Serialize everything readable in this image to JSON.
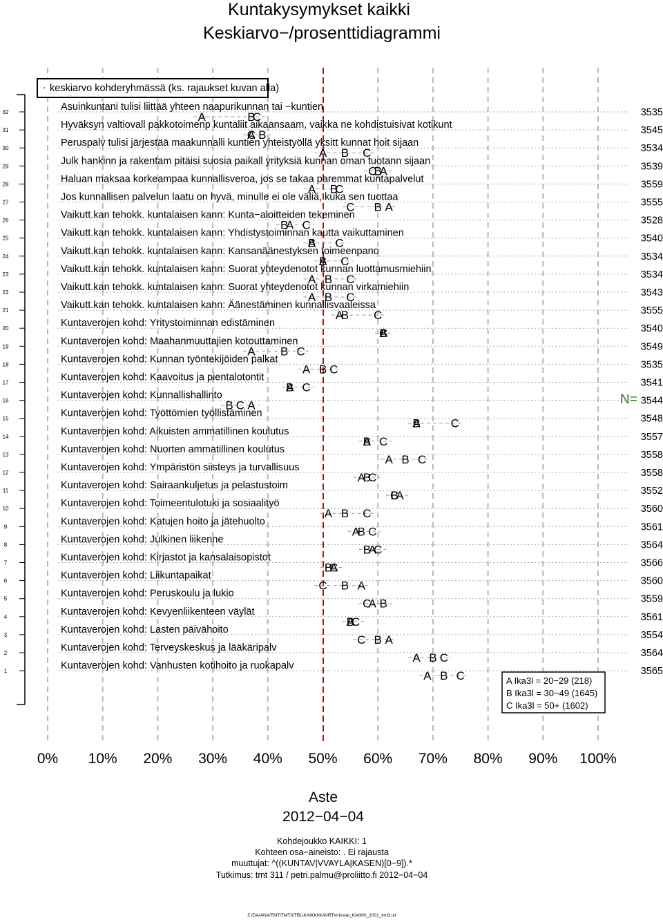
{
  "title": [
    "Kuntakysymykset kaikki",
    "Keskiarvo−/prosenttidiagrammi"
  ],
  "legend_top": "keskiarvo kohderyhmässä (ks. rajaukset kuvan alla)",
  "n_label": "N=",
  "group_legend": [
    "A  Ika3l = 20−29 (218)",
    "B  Ika3l = 30−49 (1645)",
    "C  Ika3l = 50+ (1602)"
  ],
  "footer": {
    "xlabel": "Aste",
    "date": "2012−04−04",
    "line1": "Kohdejoukko KAIKKI: 1",
    "line2": "Kohteen osa−aineisto: . Ei rajausta",
    "line3": "muuttujat: ^((KUNTAV|VVAYLA|KASEN)[0−9]).*",
    "line4": "Tutkimus: tmt 311 / petri.palmu@proliitto.fi 2012−04−04",
    "path": "Z:/DA/ANA/TMT/TMT3/TBL\\KAIKKI\\KAVRT\\minstat_KAIKKI_1001_tmt3.txt"
  },
  "chart_data": {
    "type": "scatter",
    "title": "Kuntakysymykset kaikki",
    "xlabel": "Aste",
    "x_ticks": [
      "0%",
      "10%",
      "20%",
      "30%",
      "40%",
      "50%",
      "60%",
      "70%",
      "80%",
      "90%",
      "100%"
    ],
    "xlim": [
      0,
      100
    ],
    "reference_line": 50,
    "groups": [
      "A",
      "B",
      "C"
    ],
    "rows": [
      {
        "n": 32,
        "label": "Asuinkuntani tulisi liittää yhteen naapurikunnan tai −kuntien",
        "N": "3535",
        "A": 28,
        "B": 37,
        "C": 38
      },
      {
        "n": 31,
        "label": "Hyväksyn valtiovall pakkotoimenp kuntaliit aikaansaam, vaikka ne kohdistuisivat kotikunt",
        "N": "3545",
        "A": 37,
        "B": 39,
        "C": 37
      },
      {
        "n": 30,
        "label": "Peruspalv tulisi järjestää maakunnalli kuntien yhteistyöllä yksitt kunnat hoit sijaan",
        "N": "3534",
        "A": 50,
        "B": 54,
        "C": 58
      },
      {
        "n": 29,
        "label": "Julk hankinn ja rakentam pitäisi suosia paikall yrityksiä kunnan oman tuotann sijaan",
        "N": "3539",
        "A": 61,
        "B": 60,
        "C": 59
      },
      {
        "n": 28,
        "label": "Haluan maksaa korkeampaa kunnallisveroa, jos se takaa paremmat kuntapalvelut",
        "N": "3559",
        "A": 48,
        "B": 52,
        "C": 53
      },
      {
        "n": 27,
        "label": "Jos kunnallisen palvelun laatu on hyvä, minulle ei ole väliä, kuka sen tuottaa",
        "N": "3555",
        "A": 62,
        "B": 60,
        "C": 55
      },
      {
        "n": 26,
        "label": "Vaikutt.kan tehokk. kuntalaisen kann: Kunta−aloitteiden tekeminen",
        "N": "3528",
        "A": 44,
        "B": 43,
        "C": 47
      },
      {
        "n": 25,
        "label": "Vaikutt.kan tehokk. kuntalaisen kann: Yhdistystoiminnan kautta vaikuttaminen",
        "N": "3540",
        "A": 48,
        "B": 48,
        "C": 53
      },
      {
        "n": 24,
        "label": "Vaikutt.kan tehokk. kuntalaisen kann: Kansanäänestyksen toimeenpano",
        "N": "3534",
        "A": 50,
        "B": 50,
        "C": 54
      },
      {
        "n": 23,
        "label": "Vaikutt.kan tehokk. kuntalaisen kann: Suorat yhteydenotot kunnan luottamusmiehiin",
        "N": "3534",
        "A": 48,
        "B": 51,
        "C": 55
      },
      {
        "n": 22,
        "label": "Vaikutt.kan tehokk. kuntalaisen kann: Suorat yhteydenotot kunnan virkamiehiin",
        "N": "3543",
        "A": 48,
        "B": 51,
        "C": 55
      },
      {
        "n": 21,
        "label": "Vaikutt.kan tehokk. kuntalaisen kann: Äänestäminen kunnallisvaaleissa",
        "N": "3555",
        "A": 53,
        "B": 54,
        "C": 60
      },
      {
        "n": 20,
        "label": "Kuntaverojen kohd: Yritystoiminnan edistäminen",
        "N": "3540",
        "A": 61,
        "B": 61,
        "C": 61
      },
      {
        "n": 19,
        "label": "Kuntaverojen kohd: Maahanmuuttajien kotouttaminen",
        "N": "3549",
        "A": 37,
        "B": 43,
        "C": 46
      },
      {
        "n": 18,
        "label": "Kuntaverojen kohd: Kunnan työntekijöiden palkat",
        "N": "3535",
        "A": 47,
        "B": 50,
        "C": 52
      },
      {
        "n": 17,
        "label": "Kuntaverojen kohd: Kaavoitus ja pientalotontit",
        "N": "3541",
        "A": 44,
        "B": 44,
        "C": 47
      },
      {
        "n": 16,
        "label": "Kuntaverojen kohd: Kunnallishallinto",
        "N": "3544",
        "A": 37,
        "B": 33,
        "C": 35
      },
      {
        "n": 15,
        "label": "Kuntaverojen kohd: Työttömien työllistäminen",
        "N": "3548",
        "A": 67,
        "B": 67,
        "C": 74
      },
      {
        "n": 14,
        "label": "Kuntaverojen kohd: Aikuisten ammatillinen koulutus",
        "N": "3557",
        "A": 58,
        "B": 58,
        "C": 61
      },
      {
        "n": 13,
        "label": "Kuntaverojen kohd: Nuorten ammatillinen koulutus",
        "N": "3558",
        "A": 62,
        "B": 65,
        "C": 68
      },
      {
        "n": 12,
        "label": "Kuntaverojen kohd: Ympäristön siisteys ja turvallisuus",
        "N": "3558",
        "A": 57,
        "B": 58,
        "C": 59
      },
      {
        "n": 11,
        "label": "Kuntaverojen kohd: Sairaankuljetus ja pelastustoim",
        "N": "3552",
        "A": 64,
        "B": 63,
        "C": 63
      },
      {
        "n": 10,
        "label": "Kuntaverojen kohd: Toimeentulotuki ja sosiaalityö",
        "N": "3560",
        "A": 51,
        "B": 54,
        "C": 58
      },
      {
        "n": 9,
        "label": "Kuntaverojen kohd: Katujen hoito ja jätehuolto",
        "N": "3561",
        "A": 56,
        "B": 57,
        "C": 59
      },
      {
        "n": 8,
        "label": "Kuntaverojen kohd: Julkinen liikenne",
        "N": "3564",
        "A": 59,
        "B": 58,
        "C": 60
      },
      {
        "n": 7,
        "label": "Kuntaverojen kohd: Kirjastot ja kansalaisopistot",
        "N": "3566",
        "A": 52,
        "B": 51,
        "C": 52
      },
      {
        "n": 6,
        "label": "Kuntaverojen kohd: Liikuntapaikat",
        "N": "3560",
        "A": 57,
        "B": 54,
        "C": 50
      },
      {
        "n": 5,
        "label": "Kuntaverojen kohd: Peruskoulu ja lukio",
        "N": "3559",
        "A": 59,
        "B": 61,
        "C": 58
      },
      {
        "n": 4,
        "label": "Kuntaverojen kohd: Kevyenliikenteen väylät",
        "N": "3561",
        "A": 55,
        "B": 55,
        "C": 56
      },
      {
        "n": 3,
        "label": "Kuntaverojen kohd: Lasten päivähoito",
        "N": "3554",
        "A": 62,
        "B": 60,
        "C": 57
      },
      {
        "n": 2,
        "label": "Kuntaverojen kohd: Terveyskeskus ja lääkäripalv",
        "N": "3564",
        "A": 67,
        "B": 70,
        "C": 72
      },
      {
        "n": 1,
        "label": "Kuntaverojen kohd: Vanhusten kotihoito ja ruokapalv",
        "N": "3565",
        "A": 69,
        "B": 72,
        "C": 75
      }
    ]
  }
}
